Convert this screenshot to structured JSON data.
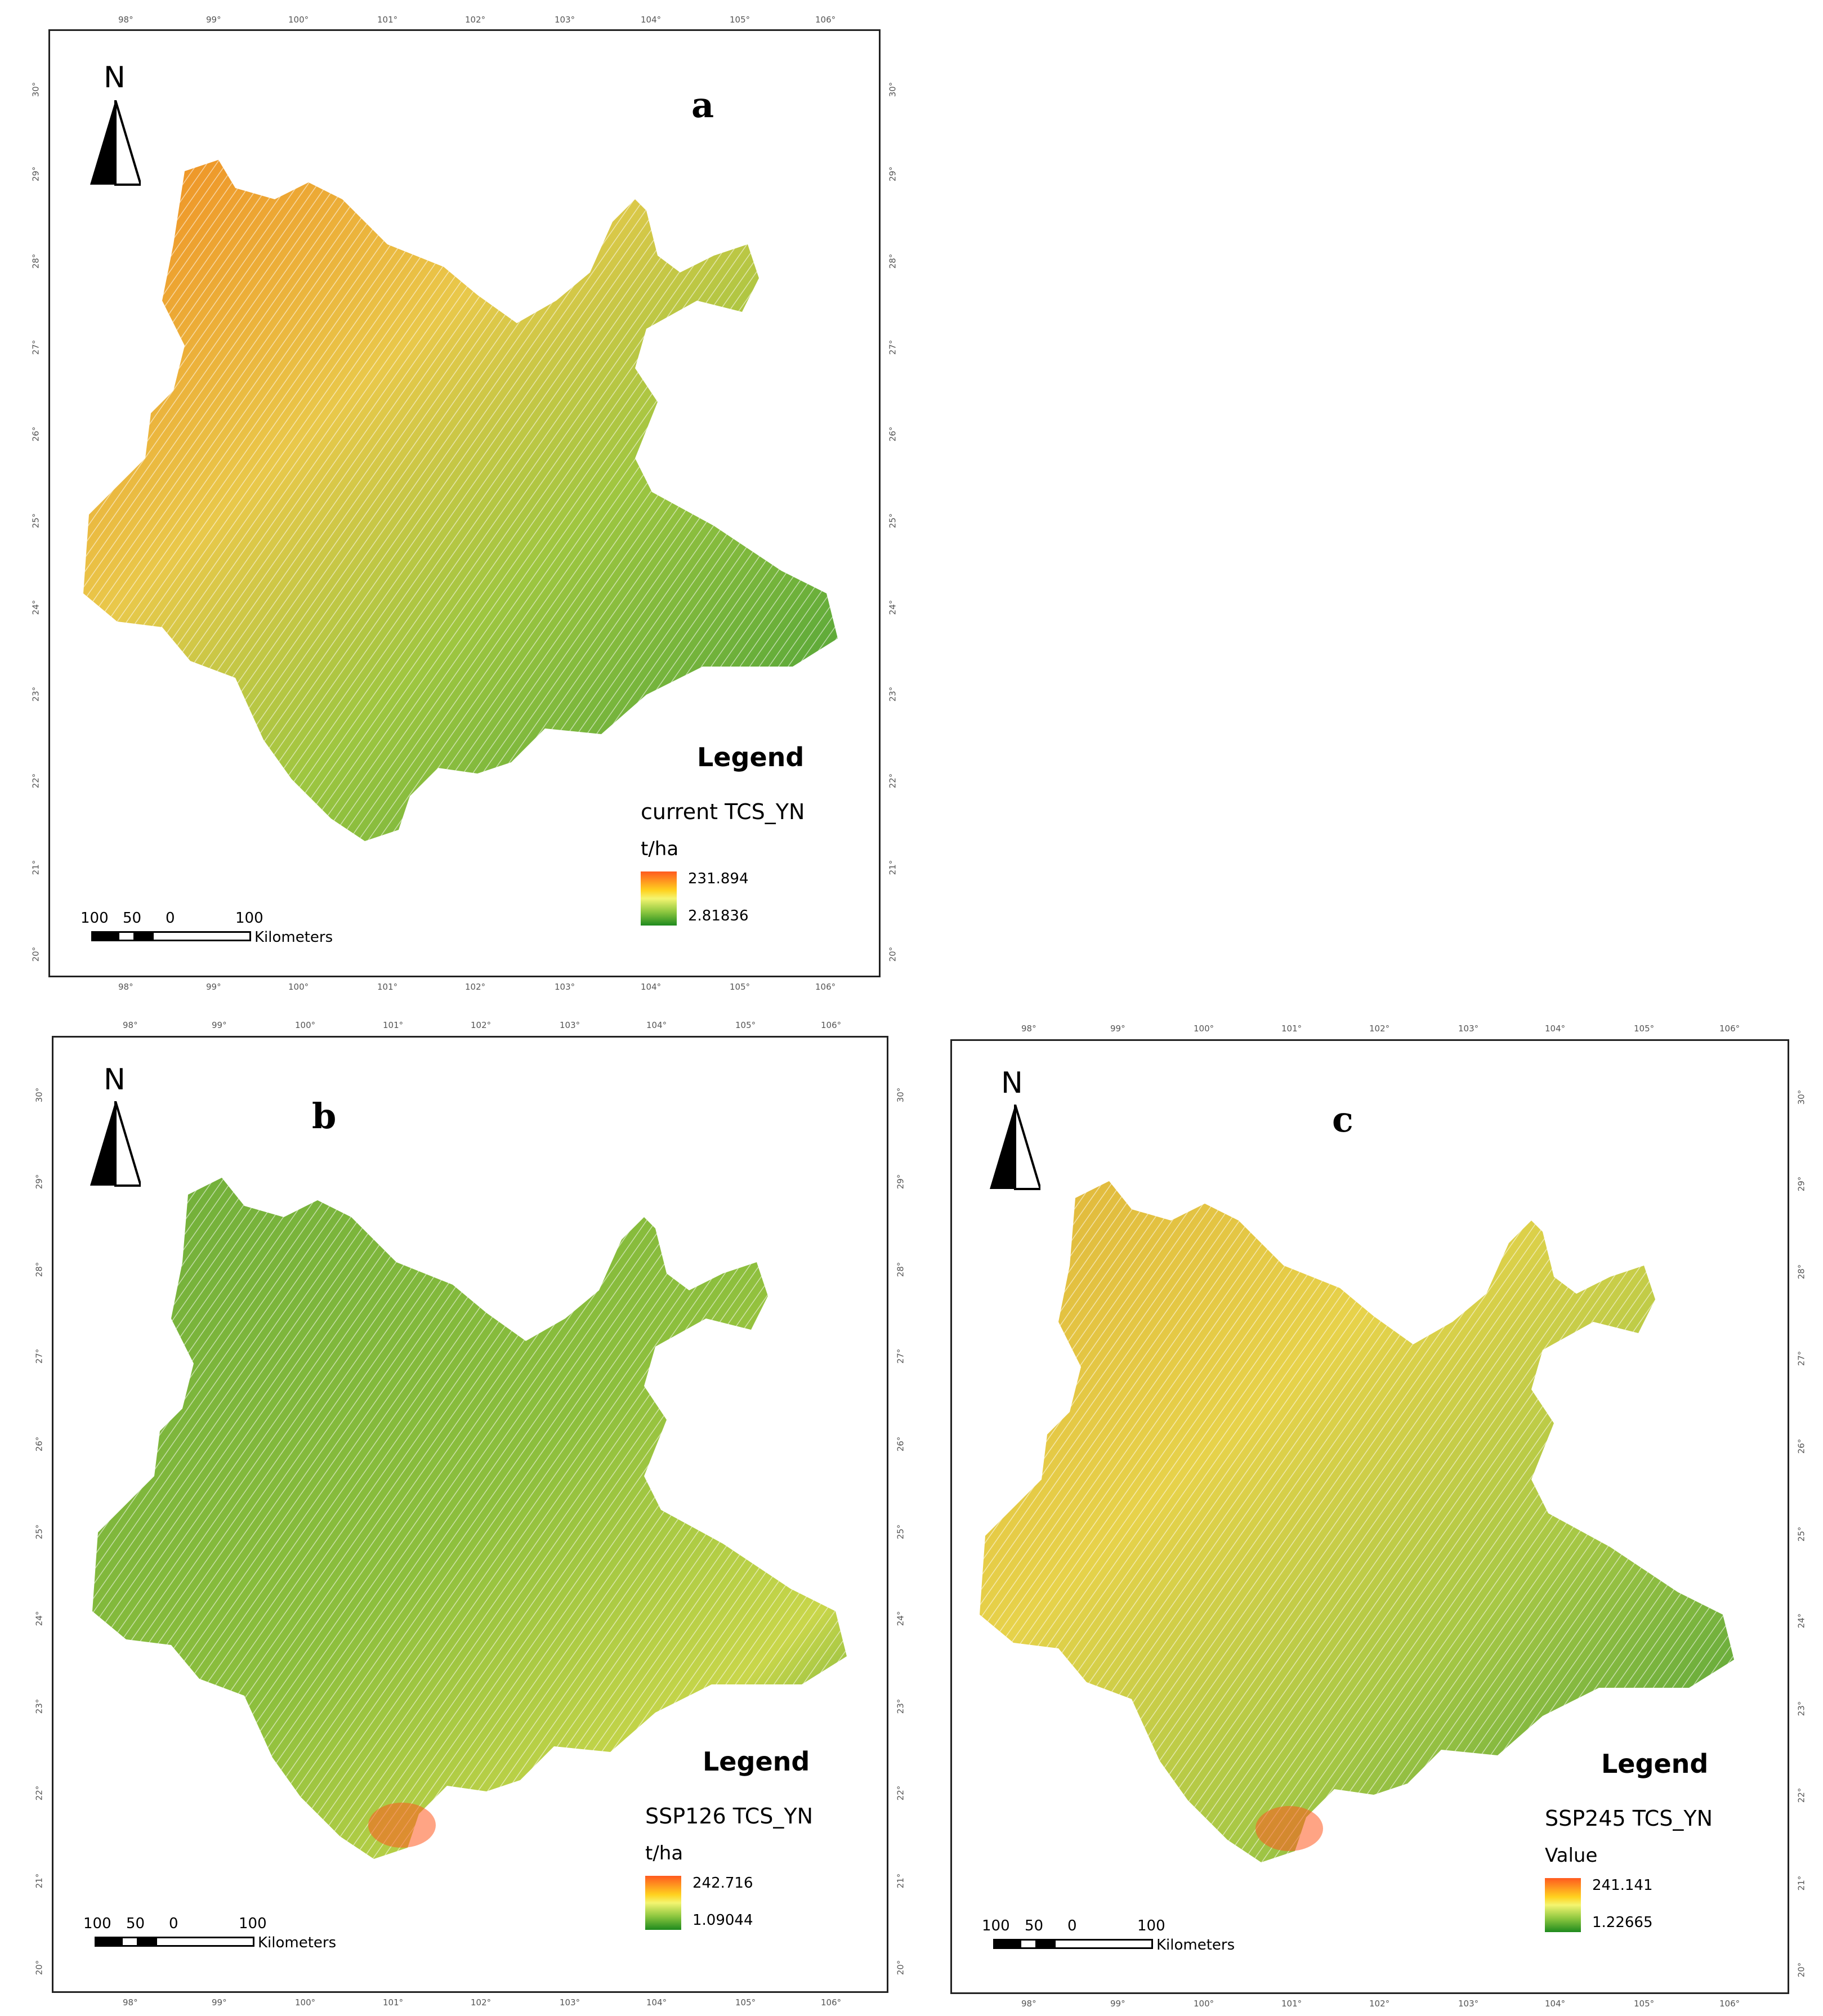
{
  "panels": [
    {
      "id": "a",
      "letter": "a",
      "north": "N",
      "legend_heading": "Legend",
      "legend_title": "current TCS_YN",
      "legend_unit": "t/ha",
      "legend_max": "231.894",
      "legend_min": "2.81836",
      "scale_labels": [
        "100",
        "50",
        "0",
        "100"
      ],
      "scale_unit": "Kilometers"
    },
    {
      "id": "b",
      "letter": "b",
      "north": "N",
      "legend_heading": "Legend",
      "legend_title": "SSP126 TCS_YN",
      "legend_unit": "t/ha",
      "legend_max": "242.716",
      "legend_min": "1.09044",
      "scale_labels": [
        "100",
        "50",
        "0",
        "100"
      ],
      "scale_unit": "Kilometers"
    },
    {
      "id": "c",
      "letter": "c",
      "north": "N",
      "legend_heading": "Legend",
      "legend_title": "SSP245 TCS_YN",
      "legend_unit": "Value",
      "legend_max": "241.141",
      "legend_min": "1.22665",
      "scale_labels": [
        "100",
        "50",
        "0",
        "100"
      ],
      "scale_unit": "Kilometers"
    }
  ],
  "lon_ticks": [
    "98°",
    "99°",
    "100°",
    "101°",
    "102°",
    "103°",
    "104°",
    "105°",
    "106°"
  ],
  "lat_ticks": [
    "30°",
    "29°",
    "28°",
    "27°",
    "26°",
    "25°",
    "24°",
    "23°",
    "22°",
    "21°",
    "20°"
  ],
  "colors": {
    "high": "#ff5a1f",
    "mid": "#f4f570",
    "low": "#1e8a1e",
    "frame": "#222222"
  }
}
